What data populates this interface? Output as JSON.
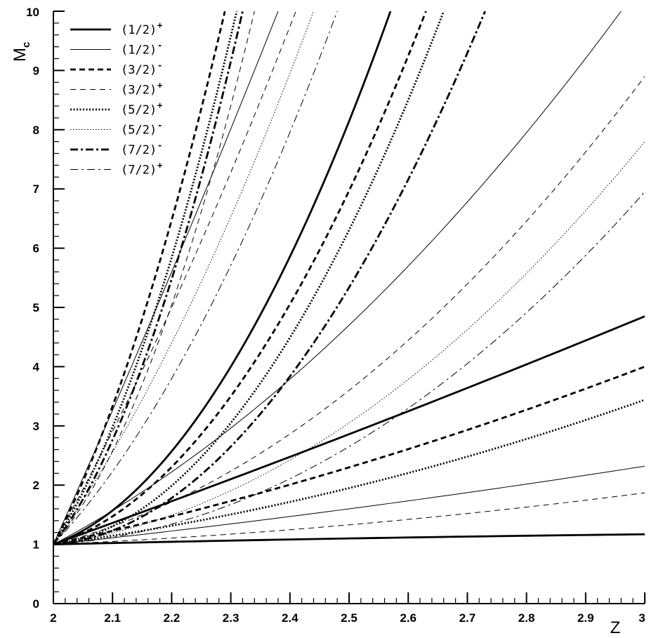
{
  "chart_data": {
    "type": "line",
    "xlabel": "Z",
    "ylabel": {
      "main": "M",
      "sub": "c"
    },
    "xlim": [
      2,
      3
    ],
    "ylim": [
      0,
      10
    ],
    "x_ticks": [
      "2",
      "2.1",
      "2.2",
      "2.3",
      "2.4",
      "2.5",
      "2.6",
      "2.7",
      "2.8",
      "2.9",
      "3"
    ],
    "y_ticks": [
      "0",
      "1",
      "2",
      "3",
      "4",
      "5",
      "6",
      "7",
      "8",
      "9",
      "10"
    ],
    "grid": false,
    "legend_position": "top-left",
    "legend": [
      {
        "label": "(1/2)",
        "sup": "+",
        "style": "solid-thick"
      },
      {
        "label": "(1/2)",
        "sup": "-",
        "style": "solid-thin"
      },
      {
        "label": "(3/2)",
        "sup": "-",
        "style": "dashed-thick"
      },
      {
        "label": "(3/2)",
        "sup": "+",
        "style": "dashed-thin"
      },
      {
        "label": "(5/2)",
        "sup": "+",
        "style": "dotted-thick"
      },
      {
        "label": "(5/2)",
        "sup": "-",
        "style": "dotted-thin"
      },
      {
        "label": "(7/2)",
        "sup": "-",
        "style": "dashdot-thick"
      },
      {
        "label": "(7/2)",
        "sup": "+",
        "style": "dashdot-thin"
      }
    ],
    "series": [
      {
        "style": "solid-thick",
        "x": [
          2,
          2.5,
          3
        ],
        "y": [
          1,
          1.1,
          1.17
        ]
      },
      {
        "style": "solid-thin",
        "x": [
          2,
          2.5,
          3
        ],
        "y": [
          1,
          1.6,
          2.32
        ]
      },
      {
        "style": "dashed-thin",
        "x": [
          2,
          2.5,
          3
        ],
        "y": [
          1,
          1.33,
          1.87
        ]
      },
      {
        "style": "solid-thick",
        "x": [
          2,
          2.5,
          3
        ],
        "y": [
          1,
          2.86,
          4.85
        ]
      },
      {
        "style": "dashed-thick",
        "x": [
          2,
          2.5,
          3
        ],
        "y": [
          1,
          2.3,
          4.0
        ]
      },
      {
        "style": "dotted-thick",
        "x": [
          2,
          2.5,
          3
        ],
        "y": [
          1,
          1.95,
          3.44
        ]
      },
      {
        "style": "solid-thin",
        "x": [
          2,
          2.5,
          2.96
        ],
        "y": [
          1,
          4.7,
          10
        ]
      },
      {
        "style": "dashed-thin",
        "x": [
          2,
          2.5,
          3
        ],
        "y": [
          1,
          3.6,
          8.9
        ]
      },
      {
        "style": "dotted-thin",
        "x": [
          2,
          2.5,
          3
        ],
        "y": [
          1,
          3.05,
          7.8
        ]
      },
      {
        "style": "dashdot-thin",
        "x": [
          2,
          2.5,
          3
        ],
        "y": [
          1,
          2.65,
          6.95
        ]
      },
      {
        "style": "solid-thick",
        "x": [
          2,
          2.3,
          2.57
        ],
        "y": [
          1,
          4.0,
          10
        ]
      },
      {
        "style": "dashed-thick",
        "x": [
          2,
          2.3,
          2.63
        ],
        "y": [
          1,
          3.5,
          10
        ]
      },
      {
        "style": "dotted-thick",
        "x": [
          2,
          2.3,
          2.66
        ],
        "y": [
          1,
          3.05,
          10
        ]
      },
      {
        "style": "dashdot-thick",
        "x": [
          2,
          2.3,
          2.73
        ],
        "y": [
          1,
          2.65,
          10
        ]
      },
      {
        "style": "solid-thin",
        "x": [
          2,
          2.2,
          2.38
        ],
        "y": [
          1,
          5.6,
          10
        ]
      },
      {
        "style": "dashed-thin",
        "x": [
          2,
          2.2,
          2.41
        ],
        "y": [
          1,
          5.0,
          10
        ]
      },
      {
        "style": "dotted-thin",
        "x": [
          2,
          2.2,
          2.44
        ],
        "y": [
          1,
          4.4,
          10
        ]
      },
      {
        "style": "dashdot-thin",
        "x": [
          2,
          2.2,
          2.48
        ],
        "y": [
          1,
          3.8,
          10
        ]
      },
      {
        "style": "dashed-thick",
        "x": [
          2,
          2.15,
          2.29
        ],
        "y": [
          1,
          4.8,
          10
        ]
      },
      {
        "style": "dotted-thick",
        "x": [
          2,
          2.15,
          2.31
        ],
        "y": [
          1,
          4.3,
          10
        ]
      },
      {
        "style": "dashdot-thick",
        "x": [
          2,
          2.15,
          2.32
        ],
        "y": [
          1,
          4.0,
          10
        ]
      },
      {
        "style": "dashed-thin",
        "x": [
          2,
          2.15,
          2.34
        ],
        "y": [
          1,
          3.7,
          10
        ]
      }
    ]
  }
}
